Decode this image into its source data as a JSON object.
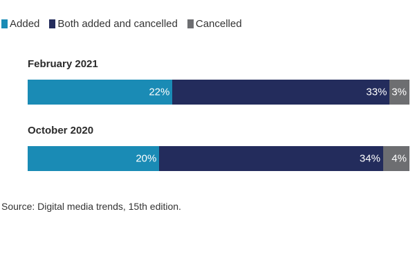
{
  "chart_data": {
    "type": "bar",
    "orientation": "horizontal",
    "stacked": true,
    "categories": [
      "February 2021",
      "October 2020"
    ],
    "series": [
      {
        "name": "Added",
        "color": "#1a8bb5",
        "values": [
          22,
          20
        ]
      },
      {
        "name": "Both added and cancelled",
        "color": "#232c5c",
        "values": [
          33,
          34
        ]
      },
      {
        "name": "Cancelled",
        "color": "#6d6e71",
        "values": [
          3,
          4
        ]
      }
    ],
    "value_suffix": "%",
    "data_labels": [
      [
        "22%",
        "33%",
        "3%"
      ],
      [
        "20%",
        "34%",
        "4%"
      ]
    ],
    "legend_position": "top-left",
    "grid": false
  },
  "source": "Source: Digital media trends, 15th edition."
}
